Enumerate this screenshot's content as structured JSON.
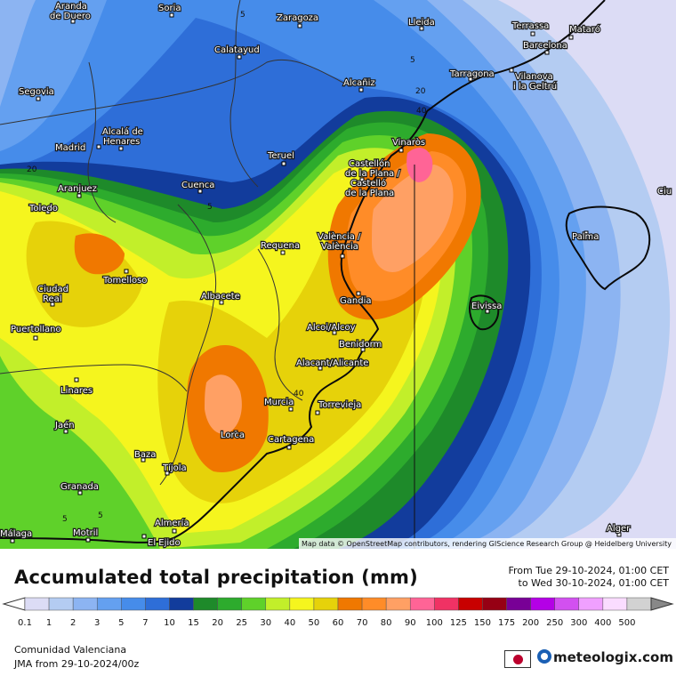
{
  "title": "Accumulated total precipitation (mm)",
  "period": {
    "from": "From Tue 29-10-2024, 01:00 CET",
    "to": "to Wed 30-10-2024, 01:00 CET"
  },
  "region": "Comunidad Valenciana",
  "model": "JMA from  29-10-2024/00z",
  "brand": "meteologix.com",
  "attribution": "Map data © OpenStreetMap contributors, rendering GIScience Research Group @ Heidelberg University",
  "legend": {
    "labels": [
      "0.1",
      "1",
      "2",
      "3",
      "5",
      "7",
      "10",
      "15",
      "20",
      "25",
      "30",
      "40",
      "50",
      "60",
      "70",
      "80",
      "90",
      "100",
      "125",
      "150",
      "175",
      "200",
      "250",
      "300",
      "400",
      "500"
    ],
    "colors": [
      "#dcdcf5",
      "#b4ccf2",
      "#8cb4f2",
      "#64a0f0",
      "#468cea",
      "#2e6ed8",
      "#123c9c",
      "#1e8a2a",
      "#2dab2d",
      "#5fd12a",
      "#c2ef2a",
      "#f5f51e",
      "#e6d20a",
      "#f07800",
      "#ff8c28",
      "#ffa064",
      "#ff6496",
      "#f03264",
      "#c80000",
      "#960014",
      "#780096",
      "#b400e6",
      "#d250f0",
      "#f0a0ff",
      "#fadcff",
      "#d2d2d2"
    ]
  },
  "cities": [
    {
      "name": "Aranda",
      "name2": "de Duero"
    },
    {
      "name": "Soria"
    },
    {
      "name": "Zaragoza"
    },
    {
      "name": "Lleida"
    },
    {
      "name": "Terrassa"
    },
    {
      "name": "Mataró"
    },
    {
      "name": "Barcelona"
    },
    {
      "name": "Calatayud"
    },
    {
      "name": "Tarragona"
    },
    {
      "name": "Vilanova",
      "name2": "i la Geltrú"
    },
    {
      "name": "Segovia"
    },
    {
      "name": "Alcañiz"
    },
    {
      "name": "Alcalá de",
      "name2": "Henares"
    },
    {
      "name": "Madrid"
    },
    {
      "name": "Vinaròs"
    },
    {
      "name": "Teruel"
    },
    {
      "name": "Castellón",
      "name2": "de la Plana /",
      "name3": "Castelló",
      "name4": "de la Plana"
    },
    {
      "name": "Aranjuez"
    },
    {
      "name": "Cuenca"
    },
    {
      "name": "Toledo"
    },
    {
      "name": "Requena"
    },
    {
      "name": "València /",
      "name2": "València"
    },
    {
      "name": "Palma"
    },
    {
      "name": "Tomelloso"
    },
    {
      "name": "Albacete"
    },
    {
      "name": "Ciudad",
      "name2": "Real"
    },
    {
      "name": "Gandia"
    },
    {
      "name": "Eivissa"
    },
    {
      "name": "Alcoi/Alcoy"
    },
    {
      "name": "Puertollano"
    },
    {
      "name": "Benidorm"
    },
    {
      "name": "Alacant/Alicante"
    },
    {
      "name": "Linares"
    },
    {
      "name": "Murcia"
    },
    {
      "name": "Torrevieja"
    },
    {
      "name": "Jaén"
    },
    {
      "name": "Lorca"
    },
    {
      "name": "Cartagena"
    },
    {
      "name": "Baza"
    },
    {
      "name": "Tíjola"
    },
    {
      "name": "Granada"
    },
    {
      "name": "Almería"
    },
    {
      "name": "Motril"
    },
    {
      "name": "El Ejido"
    },
    {
      "name": "Málaga"
    },
    {
      "name": "Alger"
    },
    {
      "name": "Ciu"
    }
  ],
  "contour_labels": [
    "5",
    "5",
    "5",
    "20",
    "40",
    "20",
    "5",
    "40",
    "5"
  ]
}
